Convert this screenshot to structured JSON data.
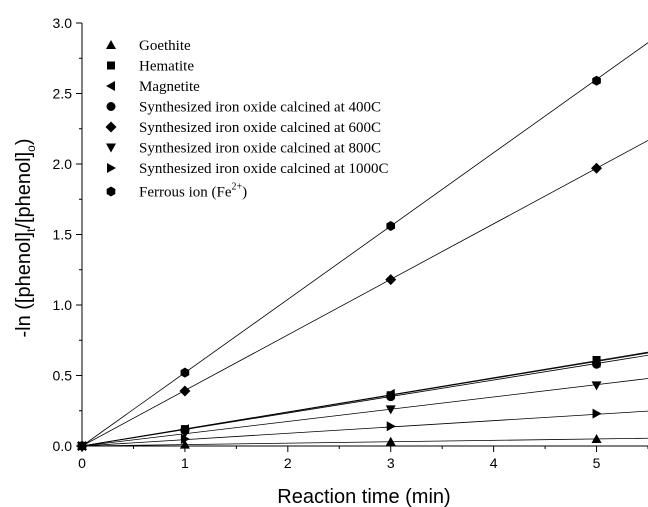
{
  "chart_data": {
    "type": "scatter",
    "xlabel": "Reaction time (min)",
    "ylabel": {
      "prefix": "-ln ([phenol]",
      "sub1": "t",
      "mid": "/[phenol]",
      "sub2": "o",
      "suffix": ")"
    },
    "xlim": [
      0,
      5.5
    ],
    "ylim": [
      0,
      3.0
    ],
    "x_ticks": [
      "0",
      "1",
      "2",
      "3",
      "4",
      "5"
    ],
    "y_ticks": [
      "0.0",
      "0.5",
      "1.0",
      "1.5",
      "2.0",
      "2.5",
      "3.0"
    ],
    "grid": false,
    "legend_position": "top-left",
    "fit_lines": true,
    "series": [
      {
        "name": "Goethite",
        "marker": "triangle-up",
        "x": [
          0,
          1,
          3,
          5
        ],
        "y": [
          0,
          0.01,
          0.03,
          0.05
        ],
        "slope": 0.01
      },
      {
        "name": "Hematite",
        "marker": "square",
        "x": [
          0,
          1,
          3,
          5
        ],
        "y": [
          0,
          0.12,
          0.36,
          0.61
        ],
        "slope": 0.121
      },
      {
        "name": "Magnetite",
        "marker": "triangle-left",
        "x": [
          0,
          1,
          3,
          5
        ],
        "y": [
          0,
          0.12,
          0.37,
          0.59
        ],
        "slope": 0.12
      },
      {
        "name": "Synthesized iron oxide calcined at 400C",
        "marker": "circle",
        "x": [
          0,
          1,
          3,
          5
        ],
        "y": [
          0,
          0.11,
          0.35,
          0.58
        ],
        "slope": 0.117
      },
      {
        "name": "Synthesized iron oxide calcined at 600C",
        "marker": "diamond",
        "x": [
          0,
          1,
          3,
          5
        ],
        "y": [
          0,
          0.39,
          1.18,
          1.97
        ],
        "slope": 0.394
      },
      {
        "name": "Synthesized iron oxide calcined at 800C",
        "marker": "triangle-down",
        "x": [
          0,
          1,
          3,
          5
        ],
        "y": [
          0,
          0.09,
          0.26,
          0.43
        ],
        "slope": 0.087
      },
      {
        "name": "Synthesized iron oxide calcined at 1000C",
        "marker": "triangle-right",
        "x": [
          0,
          1,
          3,
          5
        ],
        "y": [
          0,
          0.05,
          0.14,
          0.23
        ],
        "slope": 0.045
      },
      {
        "name": "Ferrous ion (Fe",
        "name_sup": "2+",
        "name_suffix": ")",
        "marker": "hexagon",
        "x": [
          0,
          1,
          3,
          5
        ],
        "y": [
          0,
          0.52,
          1.56,
          2.59
        ],
        "slope": 0.52
      }
    ]
  }
}
